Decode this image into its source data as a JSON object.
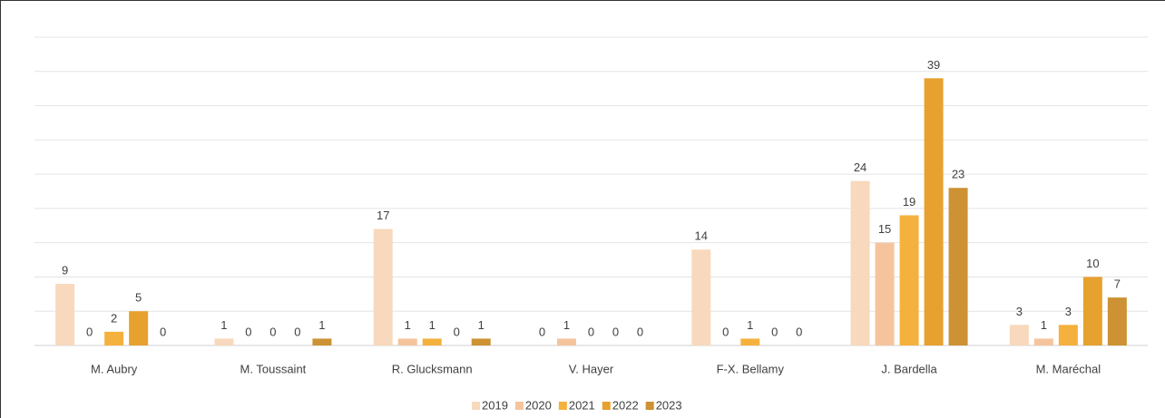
{
  "chart_data": {
    "type": "bar",
    "categories": [
      "M. Aubry",
      "M. Toussaint",
      "R. Glucksmann",
      "V. Hayer",
      "F-X. Bellamy",
      "J. Bardella",
      "M. Maréchal"
    ],
    "series": [
      {
        "name": "2019",
        "color": "#f8d9bd",
        "values": [
          9,
          1,
          17,
          0,
          14,
          24,
          3
        ]
      },
      {
        "name": "2020",
        "color": "#f6c49c",
        "values": [
          0,
          0,
          1,
          1,
          0,
          15,
          1
        ]
      },
      {
        "name": "2021",
        "color": "#f5b13d",
        "values": [
          2,
          0,
          1,
          0,
          1,
          19,
          3
        ]
      },
      {
        "name": "2022",
        "color": "#e6a12e",
        "values": [
          5,
          0,
          0,
          0,
          0,
          39,
          10
        ]
      },
      {
        "name": "2023",
        "color": "#cc9233",
        "values": [
          0,
          1,
          1,
          0,
          0,
          23,
          7
        ]
      }
    ],
    "ylim": [
      0,
      45
    ],
    "yticks": [
      0,
      5,
      10,
      15,
      20,
      25,
      30,
      35,
      40,
      45
    ],
    "grid": true,
    "legend": "bottom"
  }
}
